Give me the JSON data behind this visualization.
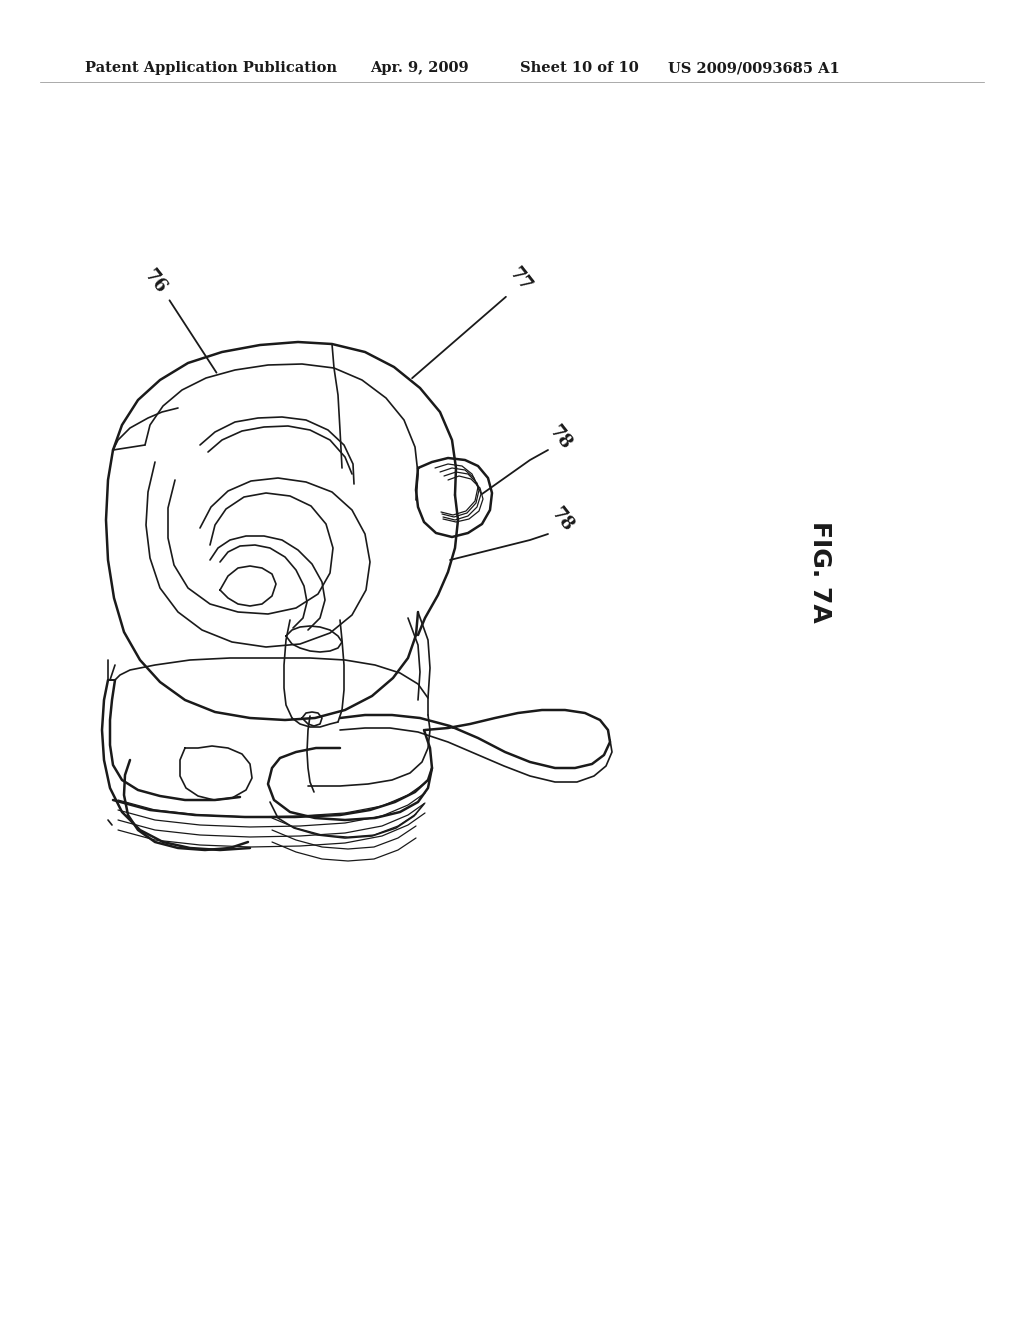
{
  "title_line1": "Patent Application Publication",
  "title_date": "Apr. 9, 2009",
  "title_sheet": "Sheet 10 of 10",
  "title_patent": "US 2009/0093685 A1",
  "fig_label": "FIG. 7A",
  "background": "#ffffff",
  "line_color": "#1a1a1a",
  "header_fontsize": 10.5,
  "fig_fontsize": 18,
  "label_fontsize": 13
}
